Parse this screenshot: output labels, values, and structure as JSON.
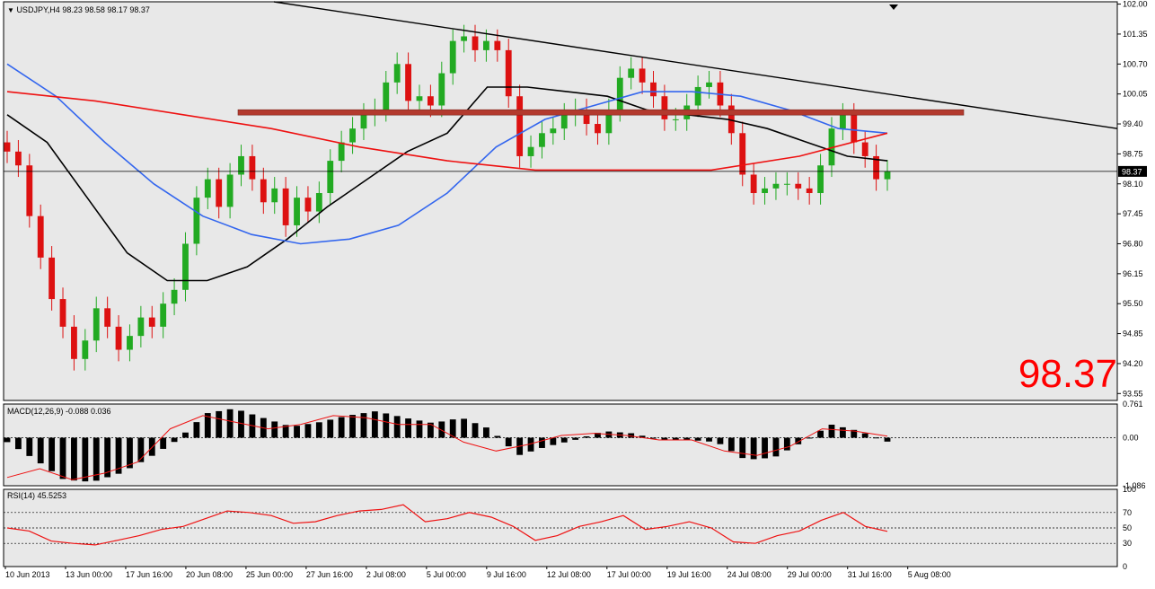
{
  "header": {
    "symbol": "USDJPY,H4",
    "ohlc": "98.23 98.58 98.17 98.37",
    "big_price": "98.37",
    "price_tag": "98.37"
  },
  "colors": {
    "background": "#ffffff",
    "panel_bg": "#e8e8e8",
    "bull": "#22aa22",
    "bear": "#dd1111",
    "ma_black": "#000000",
    "ma_blue": "#3366ee",
    "ma_red": "#ee1111",
    "resistance_band": "#b33a2e",
    "macd_signal": "#ee1111",
    "rsi": "#ee1111"
  },
  "chart_data": [
    {
      "type": "candlestick",
      "name": "price",
      "y_ticks": [
        "102.00",
        "101.35",
        "100.70",
        "100.05",
        "99.40",
        "98.75",
        "98.10",
        "97.45",
        "96.80",
        "96.15",
        "95.50",
        "94.85",
        "94.20",
        "93.55"
      ],
      "ylim": [
        93.4,
        102.05
      ],
      "x_tick_labels": [
        "10 Jun 2013",
        "13 Jun 00:00",
        "17 Jun 16:00",
        "20 Jun 08:00",
        "25 Jun 00:00",
        "27 Jun 16:00",
        "2 Jul 08:00",
        "5 Jul 00:00",
        "9 Jul 16:00",
        "12 Jul 08:00",
        "17 Jul 00:00",
        "19 Jul 16:00",
        "24 Jul 08:00",
        "29 Jul 00:00",
        "31 Jul 16:00",
        "5 Aug 08:00"
      ],
      "closes": [
        98.8,
        98.5,
        97.4,
        96.5,
        95.6,
        95.0,
        94.3,
        94.7,
        95.4,
        95.0,
        94.5,
        94.8,
        95.2,
        95.0,
        95.5,
        95.8,
        96.8,
        97.8,
        98.2,
        97.6,
        98.3,
        98.7,
        98.2,
        97.7,
        98.0,
        97.2,
        97.8,
        97.5,
        97.9,
        98.6,
        99.0,
        99.3,
        99.6,
        99.7,
        100.3,
        100.7,
        99.9,
        100.0,
        99.8,
        100.5,
        101.2,
        101.3,
        101.0,
        101.2,
        101.0,
        100.0,
        98.7,
        98.9,
        99.2,
        99.3,
        99.6,
        99.7,
        99.4,
        99.2,
        99.7,
        100.4,
        100.6,
        100.3,
        100.0,
        99.5,
        99.5,
        99.8,
        100.2,
        100.3,
        99.8,
        99.2,
        98.3,
        97.9,
        98.0,
        98.1,
        98.1,
        98.0,
        97.9,
        98.5,
        99.3,
        99.6,
        99.0,
        98.7,
        98.2,
        98.37
      ],
      "moving_averages": [
        {
          "values": [
            99.6,
            99.0,
            97.8,
            96.6,
            96.0,
            96.0,
            96.3,
            96.9,
            97.6,
            98.2,
            98.8,
            99.2,
            100.2,
            100.2,
            100.1,
            100.0,
            99.7,
            99.6,
            99.5,
            99.3,
            99.0,
            98.7,
            98.6
          ]
        },
        {
          "values": [
            100.7,
            100.0,
            99.0,
            98.1,
            97.4,
            97.0,
            96.8,
            96.9,
            97.2,
            97.9,
            98.9,
            99.5,
            99.8,
            100.1,
            100.1,
            100.0,
            99.7,
            99.3,
            99.2
          ]
        },
        {
          "values": [
            100.1,
            99.9,
            99.6,
            99.3,
            98.9,
            98.6,
            98.4,
            98.4,
            98.4,
            98.7,
            99.2
          ]
        }
      ]
    },
    {
      "type": "bar",
      "name": "MACD",
      "label": "MACD(12,26,9) -0.088 0.036",
      "y_ticks": [
        "0.761",
        "0.00",
        "-1.086"
      ],
      "ylim": [
        -1.086,
        0.761
      ],
      "histogram": [
        -0.1,
        -0.5,
        -0.95,
        -1.0,
        -0.8,
        -0.45,
        -0.05,
        0.55,
        0.66,
        0.45,
        0.25,
        0.35,
        0.5,
        0.6,
        0.45,
        0.33,
        0.45,
        0.2,
        -0.4,
        -0.2,
        -0.05,
        0.15,
        0.1,
        -0.05,
        -0.05,
        -0.1,
        -0.5,
        -0.45,
        -0.1,
        0.3,
        0.15,
        -0.088
      ],
      "signal": [
        -0.9,
        -0.7,
        -0.95,
        -0.8,
        -0.55,
        0.2,
        0.5,
        0.35,
        0.2,
        0.3,
        0.5,
        0.45,
        0.3,
        0.3,
        -0.1,
        -0.3,
        -0.15,
        0.05,
        0.1,
        0.05,
        -0.05,
        -0.05,
        -0.3,
        -0.4,
        -0.2,
        0.2,
        0.15,
        0.036
      ]
    },
    {
      "type": "line",
      "name": "RSI",
      "label": "RSI(14) 45.5253",
      "y_ticks": [
        "100",
        "70",
        "50",
        "30",
        "0"
      ],
      "ylim": [
        0,
        100
      ],
      "values": [
        50,
        46,
        33,
        30,
        28,
        34,
        40,
        48,
        52,
        62,
        72,
        70,
        66,
        56,
        58,
        66,
        72,
        74,
        80,
        58,
        62,
        70,
        64,
        52,
        34,
        40,
        52,
        58,
        66,
        48,
        52,
        58,
        50,
        32,
        30,
        40,
        46,
        60,
        70,
        52,
        45.5253
      ]
    }
  ]
}
